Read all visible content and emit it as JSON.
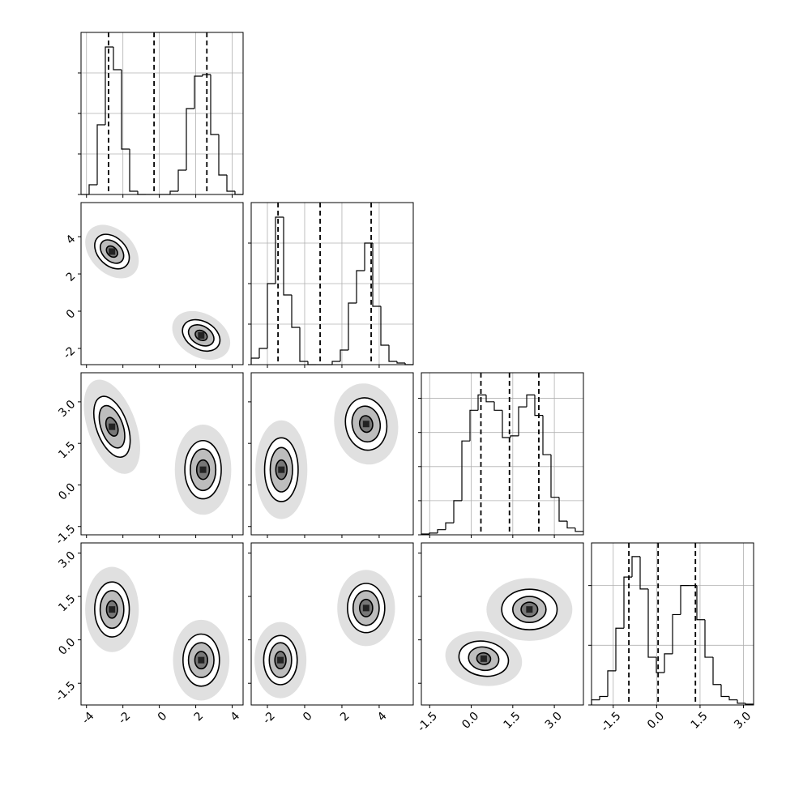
{
  "chart_data": {
    "type": "corner",
    "variables": [
      {
        "xlim": [
          -4.3,
          4.6
        ],
        "ticks": [
          -4,
          -2,
          0,
          2,
          4
        ],
        "quantiles": [
          -2.79,
          -0.29,
          2.61
        ],
        "hist": {
          "bins": [
            -4.3,
            -3.855,
            -3.41,
            -2.965,
            -2.52,
            -2.075,
            -1.63,
            -1.185,
            -0.74,
            -0.295,
            0.15,
            0.595,
            1.04,
            1.485,
            1.93,
            2.375,
            2.82,
            3.265,
            3.71,
            4.155,
            4.6
          ],
          "counts": [
            0,
            0.06,
            0.43,
            0.91,
            0.77,
            0.28,
            0.02,
            0,
            0,
            0,
            0,
            0.02,
            0.15,
            0.53,
            0.73,
            0.74,
            0.37,
            0.12,
            0.02,
            0
          ],
          "ylim": [
            0,
            1.0
          ],
          "yticks": [
            0,
            0.25,
            0.5,
            0.75
          ]
        }
      },
      {
        "xlim": [
          -2.87,
          5.83
        ],
        "ticks": [
          -2,
          0,
          2,
          4
        ],
        "quantiles": [
          -1.43,
          0.83,
          3.57
        ],
        "hist": {
          "bins": [
            -2.87,
            -2.435,
            -2.0,
            -1.565,
            -1.13,
            -0.695,
            -0.26,
            0.175,
            0.61,
            1.045,
            1.48,
            1.915,
            2.35,
            2.785,
            3.22,
            3.655,
            4.09,
            4.525,
            4.96,
            5.395,
            5.83
          ],
          "counts": [
            0.04,
            0.1,
            0.5,
            0.91,
            0.43,
            0.23,
            0.02,
            0,
            0,
            0,
            0.02,
            0.09,
            0.38,
            0.58,
            0.75,
            0.36,
            0.12,
            0.02,
            0.01,
            0
          ],
          "ylim": [
            0,
            1.0
          ],
          "yticks": [
            0,
            0.25,
            0.5,
            0.75
          ]
        }
      },
      {
        "xlim": [
          -1.8,
          4.05
        ],
        "ticks": [
          -1.5,
          {
            "value": 0,
            "label": "0.0"
          },
          1.5,
          {
            "value": 3,
            "label": "3.0"
          }
        ],
        "quantiles": [
          0.35,
          1.38,
          2.44
        ],
        "hist": {
          "bins": [
            -1.8,
            -1.5075,
            -1.215,
            -0.9225,
            -0.63,
            -0.3375,
            -0.045,
            0.2475,
            0.54,
            0.8325,
            1.125,
            1.4175,
            1.71,
            2.0025,
            2.295,
            2.5875,
            2.88,
            3.1725,
            3.465,
            3.7575,
            4.05
          ],
          "counts": [
            0.005,
            0.01,
            0.03,
            0.07,
            0.2,
            0.55,
            0.73,
            0.82,
            0.78,
            0.73,
            0.57,
            0.58,
            0.75,
            0.82,
            0.7,
            0.47,
            0.22,
            0.08,
            0.04,
            0.02
          ],
          "ylim": [
            0,
            0.95
          ],
          "yticks": [
            0,
            0.2,
            0.4,
            0.6,
            0.8
          ]
        }
      },
      {
        "xlim": [
          -2.25,
          3.35
        ],
        "ticks": [
          -1.5,
          {
            "value": 0,
            "label": "0.0"
          },
          1.5,
          {
            "value": 3,
            "label": "3.0"
          }
        ],
        "quantiles": [
          -0.96,
          0.05,
          1.34
        ],
        "hist": {
          "bins": [
            -2.25,
            -1.97,
            -1.69,
            -1.41,
            -1.13,
            -0.85,
            -0.57,
            -0.29,
            -0.01,
            0.27,
            0.55,
            0.83,
            1.11,
            1.39,
            1.67,
            1.95,
            2.23,
            2.51,
            2.79,
            3.07,
            3.35
          ],
          "counts": [
            0.03,
            0.05,
            0.2,
            0.45,
            0.75,
            0.87,
            0.68,
            0.28,
            0.19,
            0.3,
            0.53,
            0.7,
            0.7,
            0.5,
            0.28,
            0.12,
            0.05,
            0.03,
            0.01,
            0.005
          ],
          "ylim": [
            0,
            0.95
          ],
          "yticks": [
            0,
            0.35,
            0.7
          ]
        }
      }
    ],
    "panels": [
      {
        "row": 1,
        "col": 0,
        "contours": [
          {
            "x": -2.6,
            "y": 3.2,
            "rx": [
              0.35,
              0.75,
              1.1
            ],
            "ry": [
              0.25,
              0.5,
              0.75
            ],
            "angle": 45
          },
          {
            "x": 2.3,
            "y": -1.3,
            "rx": [
              0.35,
              0.75,
              1.1
            ],
            "ry": [
              0.25,
              0.5,
              0.75
            ],
            "angle": 30
          }
        ]
      },
      {
        "row": 2,
        "col": 0,
        "contours": [
          {
            "x": -2.6,
            "y": 2.1,
            "rx": [
              0.3,
              0.6,
              0.85
            ],
            "ry": [
              0.35,
              0.8,
              1.15
            ],
            "angle": -20
          },
          {
            "x": 2.4,
            "y": 0.55,
            "rx": [
              0.35,
              0.7,
              1.0
            ],
            "ry": [
              0.35,
              0.75,
              1.05
            ],
            "angle": 0
          }
        ]
      },
      {
        "row": 2,
        "col": 1,
        "contours": [
          {
            "x": -1.25,
            "y": 0.55,
            "rx": [
              0.3,
              0.6,
              0.9
            ],
            "ry": [
              0.35,
              0.8,
              1.15
            ],
            "angle": 0
          },
          {
            "x": 3.3,
            "y": 2.2,
            "rx": [
              0.35,
              0.75,
              1.1
            ],
            "ry": [
              0.3,
              0.65,
              0.95
            ],
            "angle": -10
          }
        ]
      },
      {
        "row": 3,
        "col": 0,
        "contours": [
          {
            "x": -2.6,
            "y": 1.05,
            "rx": [
              0.3,
              0.65,
              0.95
            ],
            "ry": [
              0.3,
              0.65,
              0.95
            ],
            "angle": 0
          },
          {
            "x": 2.3,
            "y": -0.7,
            "rx": [
              0.35,
              0.7,
              1.0
            ],
            "ry": [
              0.3,
              0.6,
              0.9
            ],
            "angle": 0
          }
        ]
      },
      {
        "row": 3,
        "col": 1,
        "contours": [
          {
            "x": -1.3,
            "y": -0.7,
            "rx": [
              0.3,
              0.6,
              0.9
            ],
            "ry": [
              0.3,
              0.6,
              0.85
            ],
            "angle": 0
          },
          {
            "x": 3.3,
            "y": 1.1,
            "rx": [
              0.35,
              0.7,
              1.0
            ],
            "ry": [
              0.3,
              0.6,
              0.85
            ],
            "angle": 0
          }
        ]
      },
      {
        "row": 3,
        "col": 2,
        "contours": [
          {
            "x": 0.45,
            "y": -0.65,
            "rx": [
              0.25,
              0.55,
              0.9
            ],
            "ry": [
              0.2,
              0.4,
              0.6
            ],
            "angle": 10
          },
          {
            "x": 2.1,
            "y": 1.05,
            "rx": [
              0.3,
              0.6,
              1.0
            ],
            "ry": [
              0.25,
              0.45,
              0.7
            ],
            "angle": 0
          }
        ]
      }
    ]
  }
}
